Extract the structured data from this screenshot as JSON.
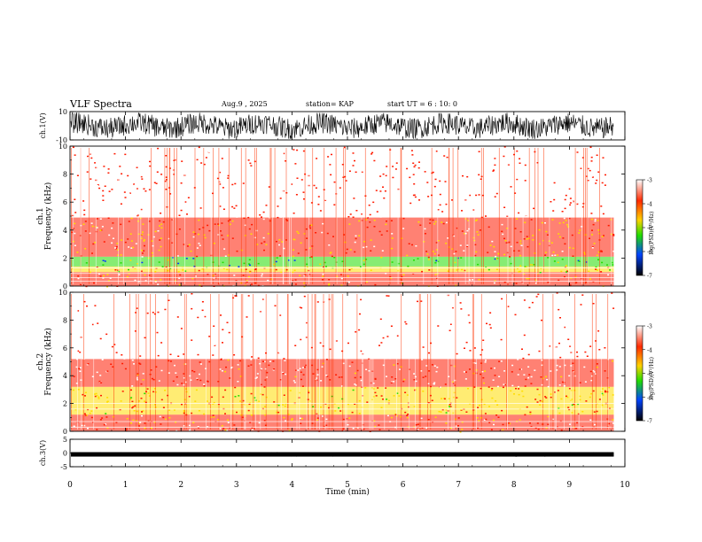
{
  "header": {
    "title": "VLF Spectra",
    "date": "Aug.9 , 2025",
    "station": "station= KAP",
    "start": "start UT = 6 : 10: 0"
  },
  "chart_data": [
    {
      "type": "line",
      "name": "ch1-waveform",
      "ylabel": "ch.1(V)",
      "ylim": [
        -10,
        10
      ],
      "yticks": [
        "10",
        "-10"
      ],
      "xlim": [
        0,
        10
      ],
      "description_free": true
    },
    {
      "type": "heatmap",
      "name": "ch1-spectrogram",
      "ylabel": "ch.1\nFrequency (kHz)",
      "ylim": [
        0,
        10
      ],
      "yticks": [
        "0",
        "2",
        "4",
        "6",
        "8",
        "10"
      ],
      "xlim": [
        0,
        10
      ],
      "data_end_min": 9.8,
      "bands": [
        {
          "from_khz": 0.0,
          "to_khz": 1.0,
          "level": -3.8
        },
        {
          "from_khz": 1.0,
          "to_khz": 1.4,
          "level": -4.2
        },
        {
          "from_khz": 1.4,
          "to_khz": 2.1,
          "level": -5.0
        },
        {
          "from_khz": 2.1,
          "to_khz": 4.9,
          "level": -3.9
        },
        {
          "from_khz": 4.9,
          "to_khz": 10.0,
          "level": -3.4
        }
      ],
      "colorbar": {
        "label": "log(PSD)(V²/Hz)",
        "range": [
          -7,
          -3
        ],
        "ticks": [
          "-3",
          "-4",
          "-5",
          "-6",
          "-7"
        ]
      }
    },
    {
      "type": "heatmap",
      "name": "ch2-spectrogram",
      "ylabel": "ch.2\nFrequency (kHz)",
      "ylim": [
        0,
        10
      ],
      "yticks": [
        "0",
        "2",
        "4",
        "6",
        "8",
        "10"
      ],
      "xlim": [
        0,
        10
      ],
      "data_end_min": 9.8,
      "bands": [
        {
          "from_khz": 0.0,
          "to_khz": 0.6,
          "level": -3.6
        },
        {
          "from_khz": 0.6,
          "to_khz": 1.2,
          "level": -3.9
        },
        {
          "from_khz": 1.2,
          "to_khz": 3.2,
          "level": -4.1
        },
        {
          "from_khz": 3.2,
          "to_khz": 5.2,
          "level": -3.5
        },
        {
          "from_khz": 5.2,
          "to_khz": 10.0,
          "level": -3.2
        }
      ],
      "colorbar": {
        "label": "log(PSD)(V²/Hz)",
        "range": [
          -7,
          -3
        ],
        "ticks": [
          "-3",
          "-4",
          "-5",
          "-6",
          "-7"
        ]
      }
    },
    {
      "type": "line",
      "name": "ch3-waveform",
      "ylabel": "ch.3(V)",
      "ylim": [
        -5,
        5
      ],
      "yticks": [
        "5",
        "0",
        "-5"
      ],
      "xlim": [
        0,
        10
      ],
      "baseline_v": -0.5,
      "data_end_min": 9.8
    }
  ],
  "xaxis": {
    "label": "Time (min)",
    "ticks": [
      "0",
      "1",
      "2",
      "3",
      "4",
      "5",
      "6",
      "7",
      "8",
      "9",
      "10"
    ],
    "range": [
      0,
      10
    ]
  },
  "colors": {
    "white": "#ffffff",
    "red": "#ff1a00",
    "yellow": "#ffdd00",
    "green": "#22dd00",
    "blue": "#0033ff",
    "black": "#000000"
  }
}
